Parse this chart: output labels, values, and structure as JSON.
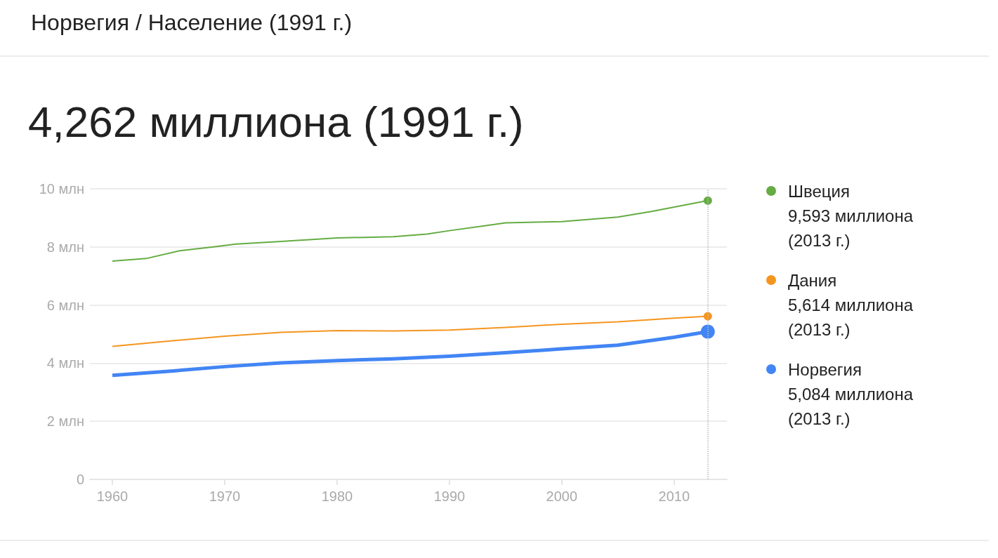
{
  "chart_data": {
    "type": "line",
    "subtitle": "Норвегия / Население (1991 г.)",
    "title": "4,262 миллиона (1991 г.)",
    "annotations": [
      "9,593 миллиона (2013 г.)",
      "5,614 миллиона (2013 г.)",
      "5,084 миллиона (2013 г.)"
    ],
    "x": [
      1960,
      1963,
      1966,
      1969,
      1971,
      1975,
      1980,
      1985,
      1988,
      1990,
      1993,
      1995,
      2000,
      2005,
      2008,
      2013
    ],
    "series": [
      {
        "name": "Швеция",
        "color": "#65ac43",
        "values": [
          7.51,
          7.6,
          7.87,
          8.0,
          8.1,
          8.19,
          8.31,
          8.35,
          8.44,
          8.56,
          8.72,
          8.83,
          8.87,
          9.03,
          9.22,
          9.593
        ]
      },
      {
        "name": "Дания",
        "color": "#f5951f",
        "x": [
          1960,
          1965,
          1970,
          1975,
          1980,
          1985,
          1990,
          1995,
          2000,
          2005,
          2010,
          2013
        ],
        "values": [
          4.58,
          4.76,
          4.93,
          5.06,
          5.12,
          5.11,
          5.14,
          5.23,
          5.34,
          5.42,
          5.55,
          5.614
        ]
      },
      {
        "name": "Норвегия",
        "color": "#4285f4",
        "x": [
          1960,
          1965,
          1970,
          1975,
          1980,
          1985,
          1990,
          1995,
          2000,
          2005,
          2010,
          2013
        ],
        "values": [
          3.58,
          3.72,
          3.88,
          4.01,
          4.09,
          4.15,
          4.24,
          4.36,
          4.49,
          4.62,
          4.89,
          5.084
        ]
      }
    ],
    "xlim": [
      1958,
      2014.7
    ],
    "xticks": [
      1960,
      1970,
      1980,
      1990,
      2000,
      2010
    ],
    "ylim": [
      0,
      10
    ],
    "yticks": [
      0,
      {
        "value": 2,
        "label": "2 млн"
      },
      {
        "value": 4,
        "label": "4 млн"
      },
      {
        "value": 6,
        "label": "6 млн"
      },
      {
        "value": 8,
        "label": "8 млн"
      },
      {
        "value": 10,
        "label": "10 млн"
      }
    ],
    "grid": "y",
    "legend": "right",
    "ref_lines": [
      {
        "axis": "x",
        "value": 2013,
        "color": "#bbbbbb",
        "line_style": "dotted"
      }
    ]
  }
}
